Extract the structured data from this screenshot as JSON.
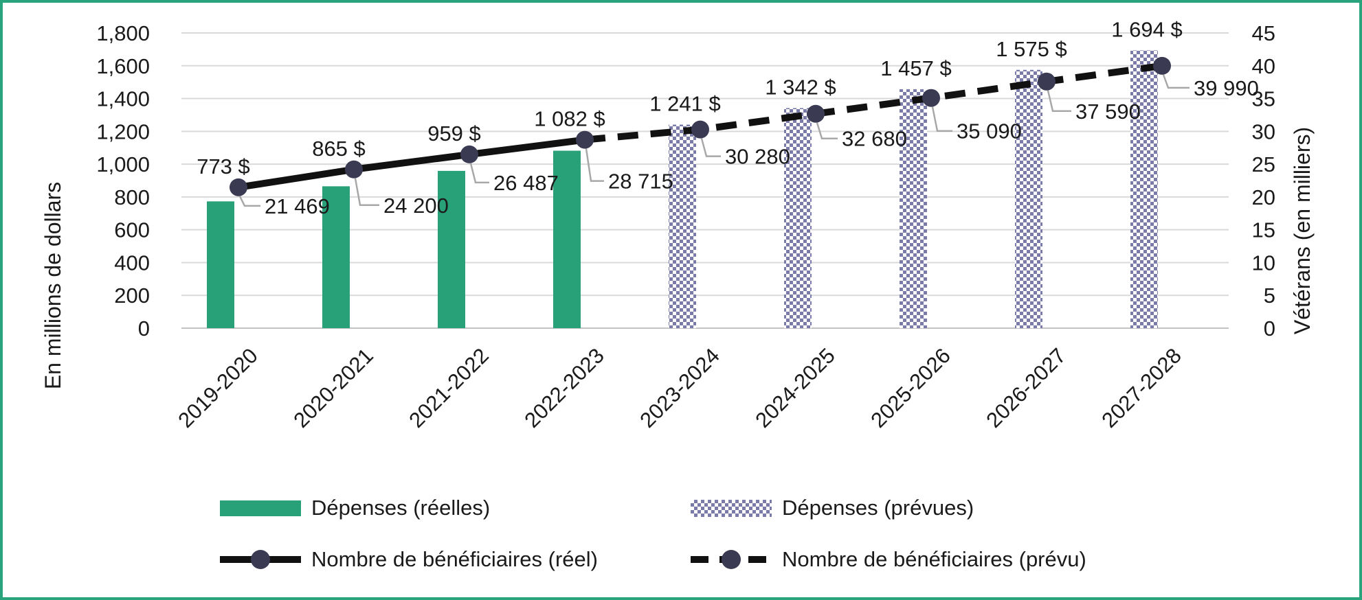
{
  "frame": {
    "border_color": "#2aa47c",
    "background": "#ffffff"
  },
  "chart_data": {
    "type": "bar",
    "subtype": "combo-bar-line",
    "categories": [
      "2019-2020",
      "2020-2021",
      "2021-2022",
      "2022-2023",
      "2023-2024",
      "2024-2025",
      "2025-2026",
      "2026-2027",
      "2027-2028"
    ],
    "series": [
      {
        "name": "Dépenses (réelles)",
        "type": "bar",
        "axis": "left",
        "color": "#28a078",
        "values": [
          773,
          865,
          959,
          1082,
          null,
          null,
          null,
          null,
          null
        ],
        "labels": [
          "773 $",
          "865 $",
          "959 $",
          "1 082 $",
          null,
          null,
          null,
          null,
          null
        ]
      },
      {
        "name": "Dépenses (prévues)",
        "type": "bar",
        "axis": "left",
        "pattern": "checker",
        "color": "#7b7ba9",
        "values": [
          null,
          null,
          null,
          null,
          1241,
          1342,
          1457,
          1575,
          1694
        ],
        "labels": [
          null,
          null,
          null,
          null,
          "1 241 $",
          "1 342 $",
          "1 457 $",
          "1 575 $",
          "1 694 $"
        ]
      },
      {
        "name": "Nombre de bénéficiaires (réel)",
        "type": "line",
        "axis": "right",
        "color": "#111111",
        "marker_color": "#3a3a52",
        "values": [
          21469,
          24200,
          26487,
          28715,
          null,
          null,
          null,
          null,
          null
        ],
        "labels": [
          "21 469",
          "24 200",
          "26 487",
          "28 715",
          null,
          null,
          null,
          null,
          null
        ]
      },
      {
        "name": "Nombre de bénéficiaires (prévu)",
        "type": "line-dashed",
        "axis": "right",
        "color": "#111111",
        "marker_color": "#3a3a52",
        "values": [
          null,
          null,
          null,
          28715,
          30280,
          32680,
          35090,
          37590,
          39990
        ],
        "labels": [
          null,
          null,
          null,
          null,
          "30 280",
          "32 680",
          "35 090",
          "37 590",
          "39 990"
        ]
      }
    ],
    "left_axis": {
      "title": "En millions de dollars",
      "min": 0,
      "max": 1800,
      "step": 200,
      "tick_labels": [
        "0",
        "200",
        "400",
        "600",
        "800",
        "1,000",
        "1,200",
        "1,400",
        "1,600",
        "1,800"
      ]
    },
    "right_axis": {
      "title": "Vétérans (en milliers)",
      "min": 0,
      "max": 45,
      "step": 5,
      "tick_labels": [
        "0",
        "5",
        "10",
        "15",
        "20",
        "25",
        "30",
        "35",
        "40",
        "45"
      ]
    },
    "grid": true,
    "gridline_color": "#d9d9d9",
    "leader_line_color": "#a8a8a8",
    "legend_position": "bottom"
  },
  "legend": {
    "items": [
      {
        "label": "Dépenses (réelles)"
      },
      {
        "label": "Dépenses (prévues)"
      },
      {
        "label": "Nombre de bénéficiaires (réel)"
      },
      {
        "label": "Nombre de bénéficiaires (prévu)"
      }
    ]
  }
}
